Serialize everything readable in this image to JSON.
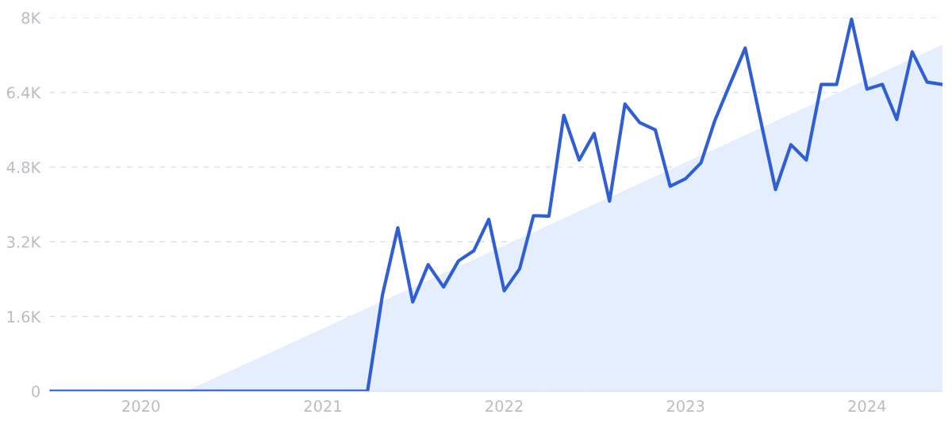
{
  "chart_data": {
    "type": "line",
    "x": [
      "2019-07",
      "2019-08",
      "2019-09",
      "2019-10",
      "2019-11",
      "2019-12",
      "2020-01",
      "2020-02",
      "2020-03",
      "2020-04",
      "2020-05",
      "2020-06",
      "2020-07",
      "2020-08",
      "2020-09",
      "2020-10",
      "2020-11",
      "2020-12",
      "2021-01",
      "2021-02",
      "2021-03",
      "2021-04",
      "2021-05",
      "2021-06",
      "2021-07",
      "2021-08",
      "2021-09",
      "2021-10",
      "2021-11",
      "2021-12",
      "2022-01",
      "2022-02",
      "2022-03",
      "2022-04",
      "2022-05",
      "2022-06",
      "2022-07",
      "2022-08",
      "2022-09",
      "2022-10",
      "2022-11",
      "2022-12",
      "2023-01",
      "2023-02",
      "2023-03",
      "2023-04",
      "2023-05",
      "2023-06",
      "2023-07",
      "2023-08",
      "2023-09",
      "2023-10",
      "2023-11",
      "2023-12",
      "2024-01",
      "2024-02",
      "2024-03",
      "2024-04",
      "2024-05",
      "2024-06"
    ],
    "series": [
      {
        "type": "area",
        "color": "#e4eefc",
        "x": [
          "2020-04",
          "2024-06"
        ],
        "values": [
          0,
          7420
        ]
      },
      {
        "color": "#2f5fd3",
        "values": [
          0,
          0,
          0,
          0,
          0,
          0,
          0,
          0,
          0,
          0,
          0,
          0,
          0,
          0,
          0,
          0,
          0,
          0,
          0,
          0,
          0,
          0,
          2060,
          3500,
          1910,
          2710,
          2230,
          2790,
          3010,
          3680,
          2150,
          2620,
          3760,
          3750,
          5910,
          4950,
          5520,
          4070,
          6150,
          5750,
          5600,
          4390,
          4550,
          4890,
          5800,
          6590,
          7350,
          5800,
          4320,
          5280,
          4950,
          6570,
          6570,
          7970,
          6470,
          6570,
          5820,
          7270,
          6620,
          6570
        ]
      }
    ],
    "xlim": [
      "2019-07",
      "2024-06"
    ],
    "xticks": [
      {
        "value": "2020-01",
        "label": "2020"
      },
      {
        "value": "2021-01",
        "label": "2021"
      },
      {
        "value": "2022-01",
        "label": "2022"
      },
      {
        "value": "2023-01",
        "label": "2023"
      },
      {
        "value": "2024-01",
        "label": "2024"
      }
    ],
    "ylim": [
      0,
      8000
    ],
    "yticks": [
      {
        "value": 0,
        "label": "0"
      },
      {
        "value": 1600,
        "label": "1.6K"
      },
      {
        "value": 3200,
        "label": "3.2K"
      },
      {
        "value": 4800,
        "label": "4.8K"
      },
      {
        "value": 6400,
        "label": "6.4K"
      },
      {
        "value": 8000,
        "label": "8K"
      }
    ],
    "grid": "y",
    "line_style": "solid",
    "legend": false
  }
}
